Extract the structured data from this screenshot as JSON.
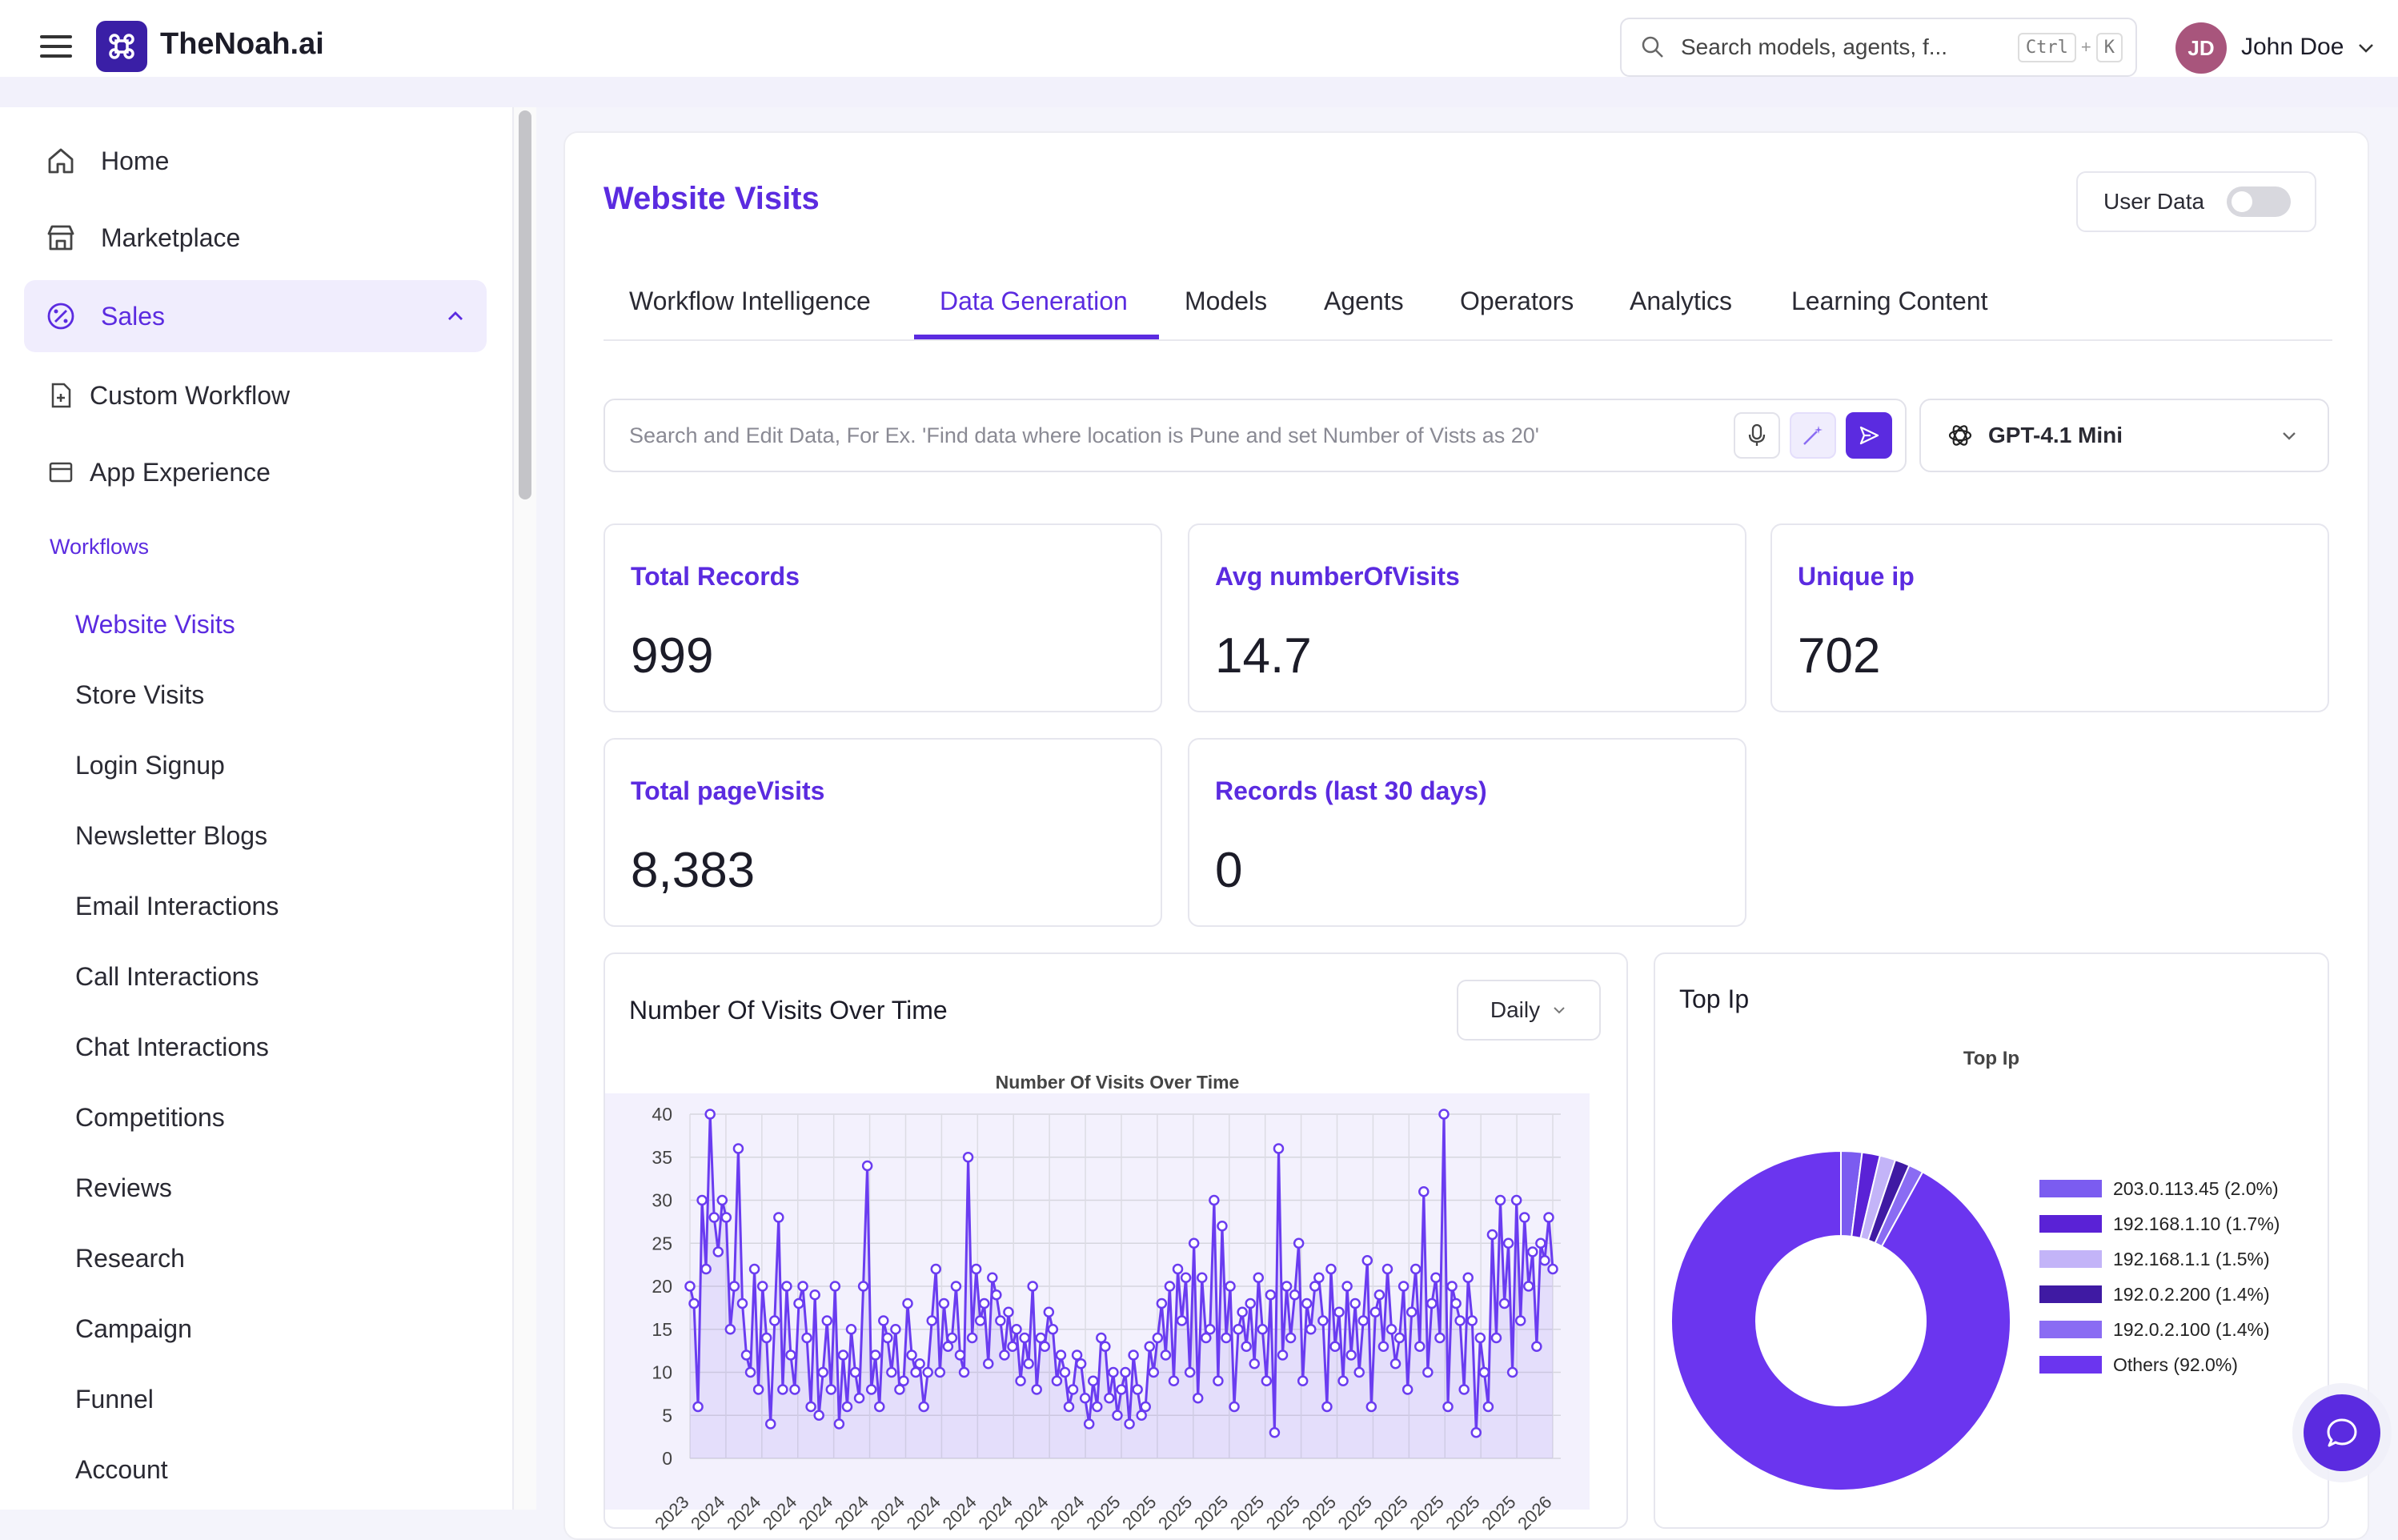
{
  "app": {
    "name": "TheNoah.ai"
  },
  "search": {
    "placeholder": "Search models, agents, f...",
    "kbd_ctrl": "Ctrl",
    "kbd_plus": "+",
    "kbd_k": "K"
  },
  "user": {
    "initials": "JD",
    "name": "John Doe"
  },
  "sidebar": {
    "items": [
      {
        "label": "Home",
        "icon": "home-icon"
      },
      {
        "label": "Marketplace",
        "icon": "store-icon"
      },
      {
        "label": "Sales",
        "icon": "sales-icon",
        "expanded": true
      }
    ],
    "sales_sub": [
      {
        "label": "Custom Workflow",
        "icon": "file-icon"
      },
      {
        "label": "App Experience",
        "icon": "window-icon"
      }
    ],
    "section_label": "Workflows",
    "workflows": [
      "Website Visits",
      "Store Visits",
      "Login Signup",
      "Newsletter Blogs",
      "Email Interactions",
      "Call Interactions",
      "Chat Interactions",
      "Competitions",
      "Reviews",
      "Research",
      "Campaign",
      "Funnel",
      "Account"
    ],
    "active_workflow": "Website Visits"
  },
  "page": {
    "title": "Website Visits",
    "toggle_label": "User Data",
    "toggle_on": false,
    "tabs": [
      "Workflow Intelligence",
      "Data Generation",
      "Models",
      "Agents",
      "Operators",
      "Analytics",
      "Learning Content"
    ],
    "active_tab": "Data Generation",
    "command_placeholder": "Search and Edit Data, For Ex. 'Find data where location is Pune and set Number of Vists as 20'",
    "model": "GPT-4.1 Mini"
  },
  "stats": [
    {
      "label": "Total Records",
      "value": "999"
    },
    {
      "label": "Avg numberOfVisits",
      "value": "14.7"
    },
    {
      "label": "Unique ip",
      "value": "702"
    },
    {
      "label": "Total pageVisits",
      "value": "8,383"
    },
    {
      "label": "Records (last 30 days)",
      "value": "0"
    }
  ],
  "visits_card": {
    "title": "Number Of Visits Over Time",
    "interval": "Daily"
  },
  "ip_card": {
    "title": "Top Ip"
  },
  "colors": {
    "accent": "#5b2be0",
    "brand": "#3a1fa6"
  },
  "chart_data": [
    {
      "type": "line",
      "title": "Number Of Visits Over Time",
      "xlabel": "",
      "ylabel": "",
      "ylim": [
        0,
        40
      ],
      "yticks": [
        0,
        5,
        10,
        15,
        20,
        25,
        30,
        35,
        40
      ],
      "xticks": [
        "2023",
        "2024",
        "2024",
        "2024",
        "2024",
        "2024",
        "2024",
        "2024",
        "2024",
        "2024",
        "2024",
        "2024",
        "2025",
        "2025",
        "2025",
        "2025",
        "2025",
        "2025",
        "2025",
        "2025",
        "2025",
        "2025",
        "2025",
        "2025",
        "2026"
      ],
      "fill": "area",
      "grid": true,
      "series": [
        {
          "values": [
            20,
            18,
            6,
            30,
            22,
            40,
            28,
            24,
            30,
            28,
            15,
            20,
            36,
            18,
            12,
            10,
            22,
            8,
            20,
            14,
            4,
            16,
            28,
            8,
            20,
            12,
            8,
            18,
            20,
            14,
            6,
            19,
            5,
            10,
            16,
            8,
            20,
            4,
            12,
            6,
            15,
            10,
            7,
            20,
            34,
            8,
            12,
            6,
            16,
            14,
            10,
            15,
            8,
            9,
            18,
            12,
            10,
            11,
            6,
            10,
            16,
            22,
            10,
            18,
            13,
            14,
            20,
            12,
            10,
            35,
            14,
            22,
            16,
            18,
            11,
            21,
            19,
            16,
            12,
            17,
            13,
            15,
            9,
            14,
            11,
            20,
            8,
            14,
            13,
            17,
            15,
            9,
            12,
            10,
            6,
            8,
            12,
            11,
            7,
            4,
            9,
            6,
            14,
            13,
            7,
            10,
            5,
            8,
            10,
            4,
            12,
            8,
            5,
            6,
            13,
            10,
            14,
            18,
            12,
            20,
            9,
            22,
            16,
            21,
            10,
            25,
            7,
            21,
            14,
            15,
            30,
            9,
            27,
            14,
            20,
            6,
            15,
            17,
            13,
            18,
            11,
            21,
            15,
            9,
            19,
            3,
            36,
            12,
            20,
            14,
            19,
            25,
            9,
            18,
            15,
            20,
            21,
            16,
            6,
            22,
            13,
            17,
            9,
            20,
            12,
            18,
            10,
            16,
            23,
            6,
            17,
            19,
            13,
            22,
            15,
            11,
            14,
            20,
            8,
            17,
            22,
            13,
            31,
            10,
            18,
            21,
            14,
            40,
            6,
            20,
            18,
            16,
            8,
            21,
            16,
            3,
            14,
            10,
            6,
            26,
            14,
            30,
            18,
            25,
            10,
            30,
            16,
            28,
            20,
            24,
            13,
            25,
            23,
            28,
            22
          ]
        }
      ]
    },
    {
      "type": "pie",
      "title": "Top Ip",
      "donut": true,
      "categories": [
        "203.0.113.45 (2.0%)",
        "192.168.1.10 (1.7%)",
        "192.168.1.1 (1.5%)",
        "192.0.2.200 (1.4%)",
        "192.0.2.100 (1.4%)",
        "Others (92.0%)"
      ],
      "values": [
        2.0,
        1.7,
        1.5,
        1.4,
        1.4,
        92.0
      ],
      "colors": [
        "#7b5cf0",
        "#5a22d6",
        "#c3b4f8",
        "#3f1aa3",
        "#8a6cf3",
        "#6b35ef"
      ],
      "legend_position": "right"
    }
  ]
}
